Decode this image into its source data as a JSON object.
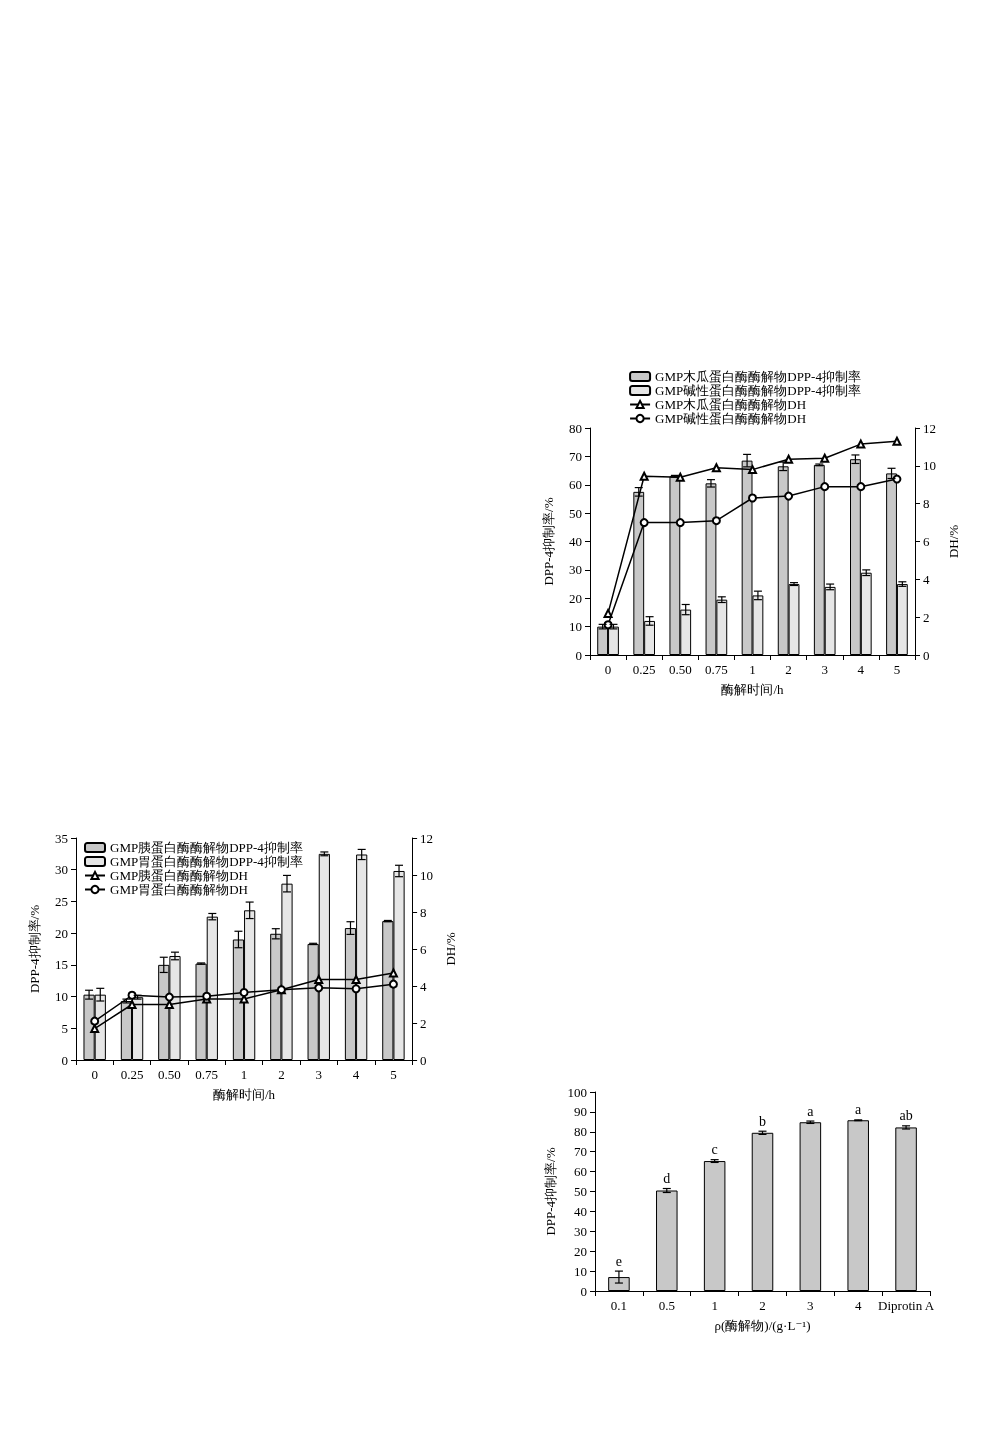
{
  "chart_data": [
    {
      "type": "bar",
      "categories": [
        "0",
        "0.25",
        "0.50",
        "0.75",
        "1",
        "2",
        "3",
        "4",
        "5"
      ],
      "xlabel": "酶解时间/h",
      "ylabel": "DPP-4抑制率/%",
      "y2label": "DH/%",
      "ylim": [
        0,
        80
      ],
      "yticks": [
        0,
        10,
        20,
        30,
        40,
        50,
        60,
        70,
        80
      ],
      "y2lim": [
        0,
        12
      ],
      "y2ticks": [
        0,
        2,
        4,
        6,
        8,
        10,
        12
      ],
      "legend": "top",
      "series": [
        {
          "name": "GMP木瓜蛋白酶酶解物DPP-4抑制率",
          "type": "bar",
          "color": "#c8c8c8",
          "values": [
            10,
            57.5,
            63,
            60.5,
            68.5,
            66.5,
            67,
            69,
            64
          ],
          "errors": [
            0.8,
            1.5,
            0.3,
            1.3,
            2.2,
            1.5,
            0.3,
            1.5,
            1.8
          ]
        },
        {
          "name": "GMP碱性蛋白酶酶解物DPP-4抑制率",
          "type": "bar",
          "color": "#e6e6e6",
          "values": [
            10,
            12,
            16,
            19.5,
            21,
            25,
            24,
            29,
            25
          ],
          "errors": [
            0.8,
            1.5,
            1.8,
            1,
            1.5,
            0.5,
            1,
            1,
            0.8
          ]
        },
        {
          "name": "GMP木瓜蛋白酶酶解物DH",
          "type": "line",
          "axis": "y2",
          "color": "#000000",
          "marker": "triangle",
          "values": [
            2.2,
            9.45,
            9.4,
            9.9,
            9.8,
            10.35,
            10.4,
            11.15,
            11.3
          ]
        },
        {
          "name": "GMP碱性蛋白酶酶解物DH",
          "type": "line",
          "axis": "y2",
          "color": "#000000",
          "marker": "circle",
          "values": [
            1.6,
            7.0,
            7.0,
            7.1,
            8.3,
            8.4,
            8.9,
            8.9,
            9.3
          ]
        }
      ]
    },
    {
      "type": "bar",
      "categories": [
        "0",
        "0.25",
        "0.50",
        "0.75",
        "1",
        "2",
        "3",
        "4",
        "5"
      ],
      "xlabel": "酶解时间/h",
      "ylabel": "DPP-4抑制率/%",
      "y2label": "DH/%",
      "ylim": [
        0,
        35
      ],
      "yticks": [
        0,
        5,
        10,
        15,
        20,
        25,
        30,
        35
      ],
      "y2lim": [
        0,
        12
      ],
      "y2ticks": [
        0,
        2,
        4,
        6,
        8,
        10,
        12
      ],
      "legend": "top left",
      "series": [
        {
          "name": "GMP胰蛋白酶酶解物DPP-4抑制率",
          "type": "bar",
          "color": "#c8c8c8",
          "values": [
            10.3,
            9.3,
            15,
            15.2,
            19,
            19.9,
            18.3,
            20.8,
            21.9
          ],
          "errors": [
            0.7,
            0.3,
            1.2,
            0.1,
            1.3,
            0.8,
            0.1,
            1,
            0.1
          ]
        },
        {
          "name": "GMP胃蛋白酶酶解物DPP-4抑制率",
          "type": "bar",
          "color": "#e6e6e6",
          "values": [
            10.3,
            9.9,
            16.4,
            22.6,
            23.6,
            27.8,
            32.5,
            32.4,
            29.8
          ],
          "errors": [
            1,
            0.3,
            0.6,
            0.5,
            1.3,
            1.3,
            0.3,
            0.8,
            0.9
          ]
        },
        {
          "name": "GMP胰蛋白酶酶解物DH",
          "type": "line",
          "axis": "y2",
          "color": "#000000",
          "marker": "triangle",
          "values": [
            1.7,
            3.0,
            3.0,
            3.3,
            3.3,
            3.8,
            4.35,
            4.35,
            4.7
          ]
        },
        {
          "name": "GMP胃蛋白酶酶解物DH",
          "type": "line",
          "axis": "y2",
          "color": "#000000",
          "marker": "circle",
          "values": [
            2.1,
            3.5,
            3.4,
            3.45,
            3.65,
            3.8,
            3.9,
            3.85,
            4.1
          ]
        }
      ]
    },
    {
      "type": "bar",
      "categories": [
        "0.1",
        "0.5",
        "1",
        "2",
        "3",
        "4",
        "Diprotin A"
      ],
      "xlabel": "ρ(酶解物)/(g·L⁻¹)",
      "ylabel": "DPP-4抑制率/%",
      "ylim": [
        0,
        100
      ],
      "yticks": [
        0,
        10,
        20,
        30,
        40,
        50,
        60,
        70,
        80,
        90,
        100
      ],
      "color": "#c8c8c8",
      "values": [
        7,
        50.5,
        65.3,
        79.5,
        84.8,
        85.8,
        82.2
      ],
      "errors": [
        3,
        1,
        0.7,
        0.8,
        0.6,
        0.2,
        0.8
      ],
      "annotations": [
        {
          "text": "e",
          "x": "0.1",
          "y": 10
        },
        {
          "text": "d",
          "x": "0.5",
          "y": 51.5
        },
        {
          "text": "c",
          "x": "1",
          "y": 66
        },
        {
          "text": "b",
          "x": "2",
          "y": 80.3
        },
        {
          "text": "a",
          "x": "3",
          "y": 85.4
        },
        {
          "text": "a",
          "x": "4",
          "y": 86
        },
        {
          "text": "ab",
          "x": "Diprotin A",
          "y": 83
        }
      ]
    }
  ]
}
